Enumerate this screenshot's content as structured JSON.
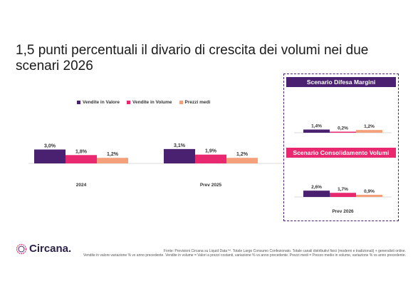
{
  "title": {
    "line1": "1,5 punti percentuali il divario di crescita dei volumi nei due",
    "line2": "scenari 2026"
  },
  "legend": [
    {
      "label": "Vendite in Valore",
      "color": "#4a2170"
    },
    {
      "label": "Vendite in Volume",
      "color": "#e8296f"
    },
    {
      "label": "Prezzi medi",
      "color": "#f4a07a"
    }
  ],
  "scenarios": {
    "box1_title": "Scenario Difesa Margini",
    "box2_title": "Scenario Consolidamento Volumi",
    "box2_xlabel": "Prev 2026"
  },
  "chart_data": [
    {
      "type": "bar",
      "categories": [
        "2024",
        "Prev 2025"
      ],
      "series": [
        {
          "name": "Vendite in Valore",
          "values": [
            3.0,
            3.1
          ],
          "labels": [
            "3,0%",
            "3,1%"
          ],
          "color": "#4a2170"
        },
        {
          "name": "Vendite in Volume",
          "values": [
            1.8,
            1.9
          ],
          "labels": [
            "1,8%",
            "1,9%"
          ],
          "color": "#e8296f"
        },
        {
          "name": "Prezzi medi",
          "values": [
            1.2,
            1.2
          ],
          "labels": [
            "1,2%",
            "1,2%"
          ],
          "color": "#f4a07a"
        }
      ]
    },
    {
      "type": "bar",
      "title": "Scenario Difesa Margini",
      "categories": [
        ""
      ],
      "series": [
        {
          "name": "Vendite in Valore",
          "values": [
            1.4
          ],
          "labels": [
            "1,4%"
          ],
          "color": "#4a2170"
        },
        {
          "name": "Vendite in Volume",
          "values": [
            0.2
          ],
          "labels": [
            "0,2%"
          ],
          "color": "#e8296f"
        },
        {
          "name": "Prezzi medi",
          "values": [
            1.2
          ],
          "labels": [
            "1,2%"
          ],
          "color": "#f4a07a"
        }
      ]
    },
    {
      "type": "bar",
      "title": "Scenario Consolidamento Volumi",
      "categories": [
        "Prev 2026"
      ],
      "series": [
        {
          "name": "Vendite in Valore",
          "values": [
            2.6
          ],
          "labels": [
            "2,6%"
          ],
          "color": "#4a2170"
        },
        {
          "name": "Vendite in Volume",
          "values": [
            1.7
          ],
          "labels": [
            "1,7%"
          ],
          "color": "#e8296f"
        },
        {
          "name": "Prezzi medi",
          "values": [
            0.9
          ],
          "labels": [
            "0,9%"
          ],
          "color": "#f4a07a"
        }
      ]
    }
  ],
  "logo": {
    "text": "Circana."
  },
  "footnote": {
    "line1": "Fonte: Previsioni Circana su Liquid Data™. Totale Largo Consumo Confezionato. Totale canali distributivi fisici (moderni e tradizionali) + generalisti online.",
    "line2": "Vendite in valore variazione % vs anno precedente. Vendite in volume = Valori a prezzi costanti, variazione % vs anno precedente. Prezzi medi = Prezzo medio in volume, variazione % vs anno precedente."
  }
}
